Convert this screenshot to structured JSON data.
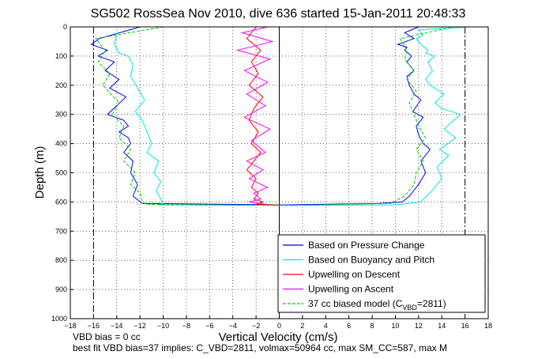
{
  "chart_data": {
    "type": "line",
    "title": "SG502 RossSea Nov 2010, dive 636 started 15-Jan-2011 20:48:33",
    "xlabel": "Vertical Velocity (cm/s)",
    "ylabel": "Depth (m)",
    "xlim": [
      -18,
      18
    ],
    "ylim": [
      0,
      1000
    ],
    "y_reversed": true,
    "grid": true,
    "xticks": [
      -18,
      -16,
      -14,
      -12,
      -10,
      -8,
      -6,
      -4,
      -2,
      0,
      2,
      4,
      6,
      8,
      10,
      12,
      14,
      16,
      18
    ],
    "yticks": [
      0,
      100,
      200,
      300,
      400,
      500,
      600,
      700,
      800,
      900,
      1000
    ],
    "legend_position": "bottom-right",
    "reference_lines": [
      {
        "name": "target-velocity-dive",
        "x": -16,
        "style": "dash-dot"
      },
      {
        "name": "target-velocity-climb",
        "x": 16,
        "style": "dash-dot"
      },
      {
        "name": "zero-velocity",
        "x": 0,
        "style": "solid"
      }
    ],
    "series": [
      {
        "name": "Based on Pressure Change",
        "color": "#0000ff",
        "style": "solid",
        "x": [
          -12,
          -15.5,
          -16.2,
          -14.8,
          -15.6,
          -14.2,
          -15.0,
          -13.8,
          -14.6,
          -13.2,
          -14.0,
          -14.8,
          -13.4,
          -13.0,
          -13.8,
          -13.0,
          -12.8,
          -13.4,
          -12.6,
          -12.8,
          -12.2,
          -12.6,
          -11.8,
          0.5,
          8.5,
          10.6,
          11.2,
          12.0,
          12.6,
          12.2,
          13.0,
          12.4,
          12.0,
          11.8,
          12.4,
          11.5,
          12.2,
          11.6,
          11.2,
          11.0,
          11.6,
          11.0,
          11.4,
          10.8,
          11.0,
          10.2,
          11.6,
          10.8,
          12.0
        ],
        "depth": [
          0,
          40,
          60,
          80,
          100,
          120,
          150,
          180,
          210,
          240,
          270,
          300,
          320,
          340,
          360,
          380,
          400,
          430,
          460,
          500,
          540,
          580,
          605,
          610,
          605,
          600,
          580,
          540,
          500,
          460,
          420,
          400,
          370,
          340,
          310,
          290,
          250,
          230,
          200,
          170,
          150,
          120,
          100,
          80,
          70,
          60,
          40,
          20,
          0
        ]
      },
      {
        "name": "Based on Buoyancy and Pitch",
        "color": "#00e5e5",
        "style": "solid",
        "x": [
          -14,
          -14.2,
          -13.8,
          -13.0,
          -12.6,
          -12.8,
          -12.2,
          -11.6,
          -12.4,
          -11.8,
          -11.4,
          -11.0,
          -11.4,
          -10.4,
          -10.8,
          -10.2,
          -10.6,
          -10.2,
          -10.0,
          -10.4,
          1.0,
          10.0,
          12.2,
          13.2,
          14.0,
          13.6,
          14.6,
          13.8,
          15.2,
          14.2,
          15.6,
          14.0,
          13.4,
          14.2,
          13.0,
          12.6,
          13.2,
          12.8,
          13.4,
          12.6,
          12.8,
          12.2,
          11.8,
          12.4,
          12.0,
          16.5
        ],
        "depth": [
          20,
          60,
          90,
          100,
          130,
          170,
          210,
          250,
          290,
          320,
          360,
          400,
          430,
          460,
          500,
          530,
          560,
          590,
          605,
          610,
          612,
          610,
          600,
          560,
          520,
          480,
          440,
          420,
          380,
          350,
          300,
          280,
          260,
          230,
          200,
          180,
          150,
          120,
          100,
          90,
          80,
          60,
          40,
          30,
          10,
          0
        ]
      },
      {
        "name": "Upwelling on Descent",
        "color": "#ff0000",
        "style": "solid",
        "x": [
          -2.0,
          -2.8,
          -1.6,
          -2.4,
          -1.8,
          -2.6,
          -1.4,
          -2.2,
          -2.6,
          -1.8,
          -2.4,
          -1.6,
          -2.2,
          -2.8,
          -2.0,
          -2.4,
          -1.8,
          -2.2,
          -1.4,
          -2.0,
          0
        ],
        "depth": [
          0,
          40,
          80,
          120,
          160,
          200,
          240,
          280,
          320,
          360,
          400,
          430,
          460,
          490,
          520,
          550,
          570,
          590,
          600,
          608,
          610
        ]
      },
      {
        "name": "Upwelling on Ascent",
        "color": "#ff00ff",
        "style": "solid",
        "x": [
          -1.0,
          -3.2,
          -0.6,
          -3.6,
          -0.8,
          -3.0,
          -1.0,
          -2.8,
          -1.2,
          -3.0,
          -0.8,
          -2.4,
          -1.2,
          -2.8,
          -1.4,
          -2.6,
          -1.0,
          -2.2,
          -1.6,
          -2.6,
          -1.2
        ],
        "depth": [
          0,
          20,
          50,
          80,
          110,
          150,
          190,
          230,
          270,
          310,
          350,
          390,
          430,
          460,
          490,
          520,
          550,
          570,
          590,
          600,
          608
        ]
      },
      {
        "name": "37 cc biased model (C_VBD=2811)",
        "legend_main": "37 cc biased model (C",
        "legend_sub": "VBD",
        "legend_tail": "=2811)",
        "color": "#00cc00",
        "style": "dashed",
        "x": [
          -10,
          -15.8,
          -15.0,
          -15.6,
          -14.6,
          -15.2,
          -13.8,
          -14.4,
          -13.4,
          -13.8,
          -12.8,
          -13.4,
          -12.4,
          -12.8,
          -12.0,
          -11.8,
          -11.5,
          1.0,
          9.6,
          10.8,
          11.6,
          11.8,
          12.4,
          11.8,
          12.6,
          12.0,
          11.6,
          11.2,
          11.8,
          11.0,
          11.6,
          10.8,
          11.0,
          10.4,
          15.0
        ],
        "depth": [
          0,
          40,
          80,
          120,
          160,
          200,
          260,
          300,
          340,
          380,
          420,
          460,
          500,
          540,
          570,
          595,
          608,
          612,
          605,
          580,
          540,
          500,
          460,
          420,
          380,
          340,
          300,
          260,
          220,
          180,
          150,
          110,
          80,
          40,
          0
        ]
      }
    ]
  },
  "footer": {
    "line1": "VBD bias = 0 cc",
    "line2": "best fit VBD bias=37 implies: C_VBD=2811, volmax=50964 cc, max SM_CC=587, max M"
  }
}
